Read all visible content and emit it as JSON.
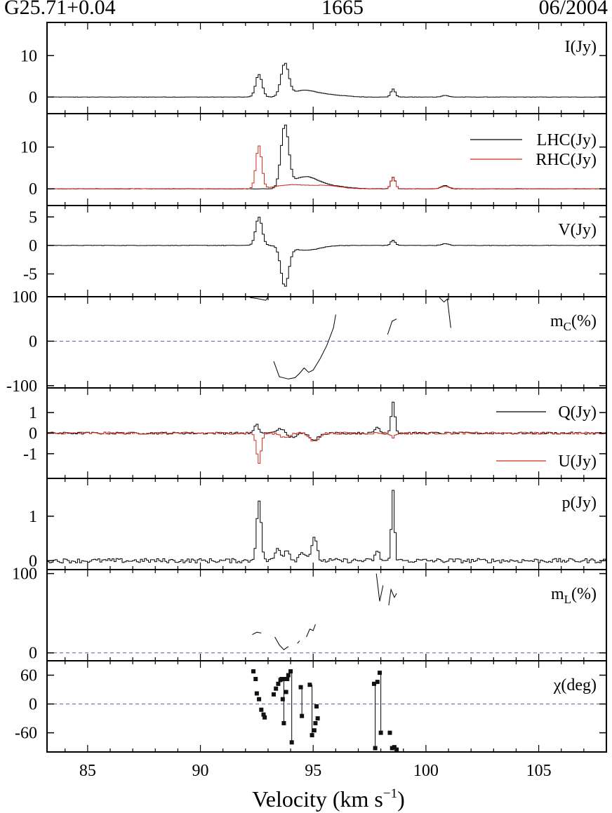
{
  "header": {
    "source": "G25.71+0.04",
    "frequency": "1665",
    "date": "06/2004"
  },
  "colors": {
    "primary": "#000000",
    "secondary": "#d02a1e",
    "zero_line": "#5a5ab4"
  },
  "chart_data": [
    {
      "type": "line",
      "step": true,
      "panel": "I",
      "xlim": [
        83.2,
        108.0
      ],
      "ylim": [
        -4,
        18
      ],
      "yticks": [
        0,
        10
      ],
      "labels": [
        "I(Jy)"
      ],
      "series": [
        {
          "name": "I(Jy)",
          "color": "#000000",
          "peaks": [
            [
              92.55,
              5.5,
              0.14
            ],
            [
              93.7,
              7.8,
              0.17
            ],
            [
              94.4,
              1.1,
              0.45
            ],
            [
              95.0,
              0.8,
              0.6
            ],
            [
              96.0,
              0.3,
              0.6
            ],
            [
              98.5,
              1.9,
              0.1
            ],
            [
              100.8,
              0.4,
              0.15
            ]
          ]
        }
      ]
    },
    {
      "type": "line",
      "step": true,
      "panel": "LHC_RHC",
      "xlim": [
        83.2,
        108.0
      ],
      "ylim": [
        -4,
        18
      ],
      "yticks": [
        0,
        10
      ],
      "labels": [
        "LHC(Jy)",
        "RHC(Jy)"
      ],
      "series": [
        {
          "name": "LHC(Jy)",
          "color": "#000000",
          "peaks": [
            [
              93.7,
              14.8,
              0.17
            ],
            [
              94.4,
              2.0,
              0.45
            ],
            [
              95.0,
              1.5,
              0.5
            ],
            [
              96.0,
              0.5,
              0.6
            ],
            [
              98.5,
              2.8,
              0.1
            ],
            [
              100.8,
              0.8,
              0.15
            ]
          ]
        },
        {
          "name": "RHC(Jy)",
          "color": "#d02a1e",
          "peaks": [
            [
              92.55,
              10.2,
              0.13
            ],
            [
              93.9,
              0.9,
              0.6
            ],
            [
              95.4,
              0.8,
              0.7
            ],
            [
              98.5,
              2.8,
              0.1
            ],
            [
              100.8,
              0.6,
              0.2
            ]
          ]
        }
      ]
    },
    {
      "type": "line",
      "step": true,
      "panel": "V",
      "xlim": [
        83.2,
        108.0
      ],
      "ylim": [
        -9,
        7
      ],
      "yticks": [
        5,
        0,
        -5
      ],
      "labels": [
        "V(Jy)"
      ],
      "series": [
        {
          "name": "V(Jy)",
          "color": "#000000",
          "peaks": [
            [
              92.55,
              5.0,
              0.14
            ],
            [
              93.7,
              -7.0,
              0.17
            ],
            [
              94.4,
              -0.6,
              0.5
            ],
            [
              95.0,
              -0.4,
              0.5
            ],
            [
              98.5,
              0.9,
              0.1
            ],
            [
              100.8,
              0.3,
              0.15
            ]
          ]
        }
      ]
    },
    {
      "type": "line",
      "step": false,
      "panel": "mc",
      "xlim": [
        83.2,
        108.0
      ],
      "ylim": [
        -105,
        100
      ],
      "yticks": [
        100,
        0,
        -100
      ],
      "labels": [
        "m",
        "C",
        "(%)"
      ],
      "zero_line": true,
      "segments": [
        [
          [
            92.2,
            98
          ],
          [
            92.5,
            96
          ],
          [
            92.9,
            92
          ],
          [
            93.0,
            99
          ]
        ],
        [
          [
            93.25,
            -45
          ],
          [
            93.5,
            -80
          ],
          [
            93.9,
            -85
          ],
          [
            94.2,
            -82
          ],
          [
            94.4,
            -72
          ],
          [
            94.6,
            -60
          ],
          [
            94.8,
            -70
          ],
          [
            95.0,
            -65
          ],
          [
            95.3,
            -40
          ],
          [
            95.6,
            -10
          ],
          [
            95.9,
            30
          ],
          [
            96.0,
            60
          ]
        ],
        [
          [
            98.3,
            15
          ],
          [
            98.5,
            45
          ],
          [
            98.7,
            50
          ]
        ],
        [
          [
            100.6,
            98
          ],
          [
            100.8,
            88
          ],
          [
            100.95,
            95
          ],
          [
            101.1,
            30
          ]
        ]
      ]
    },
    {
      "type": "line",
      "step": true,
      "panel": "Q_U",
      "xlim": [
        83.2,
        108.0
      ],
      "ylim": [
        -2.2,
        2.2
      ],
      "yticks": [
        1,
        0,
        -1
      ],
      "labels": [
        "Q(Jy)",
        "U(Jy)"
      ],
      "series": [
        {
          "name": "Q(Jy)",
          "color": "#000000",
          "peaks": [
            [
              92.45,
              0.4,
              0.1
            ],
            [
              93.5,
              0.25,
              0.15
            ],
            [
              94.0,
              -0.2,
              0.2
            ],
            [
              95.0,
              -0.3,
              0.2
            ],
            [
              97.8,
              0.3,
              0.1
            ],
            [
              98.5,
              1.55,
              0.08
            ]
          ]
        },
        {
          "name": "U(Jy)",
          "color": "#d02a1e",
          "peaks": [
            [
              92.55,
              -1.45,
              0.1
            ],
            [
              93.7,
              -0.2,
              0.2
            ],
            [
              95.0,
              -0.4,
              0.2
            ],
            [
              98.5,
              -0.2,
              0.1
            ]
          ]
        }
      ]
    },
    {
      "type": "line",
      "step": true,
      "panel": "p",
      "xlim": [
        83.2,
        108.0
      ],
      "ylim": [
        -0.2,
        1.85
      ],
      "yticks": [
        1,
        0
      ],
      "labels": [
        "p(Jy)"
      ],
      "series": [
        {
          "name": "p(Jy)",
          "color": "#000000",
          "peaks": [
            [
              92.55,
              1.35,
              0.1
            ],
            [
              93.4,
              0.28,
              0.12
            ],
            [
              93.8,
              0.25,
              0.12
            ],
            [
              94.5,
              0.2,
              0.15
            ],
            [
              95.0,
              0.5,
              0.12
            ],
            [
              97.8,
              0.2,
              0.1
            ],
            [
              98.5,
              1.55,
              0.07
            ]
          ]
        }
      ]
    },
    {
      "type": "line",
      "step": false,
      "panel": "mL",
      "xlim": [
        83.2,
        108.0
      ],
      "ylim": [
        -10,
        105
      ],
      "yticks": [
        100,
        0
      ],
      "labels": [
        "m",
        "L",
        "(%)"
      ],
      "zero_line": true,
      "segments": [
        [
          [
            92.3,
            23
          ],
          [
            92.5,
            26
          ],
          [
            92.7,
            25
          ]
        ],
        [
          [
            93.3,
            20
          ],
          [
            93.5,
            10
          ],
          [
            93.7,
            4
          ],
          [
            93.9,
            8
          ]
        ],
        [
          [
            94.3,
            12
          ],
          [
            94.4,
            15
          ]
        ],
        [
          [
            94.7,
            20
          ],
          [
            94.85,
            30
          ],
          [
            95.0,
            28
          ],
          [
            95.1,
            36
          ]
        ],
        [
          [
            97.8,
            100
          ],
          [
            97.95,
            65
          ],
          [
            98.1,
            85
          ]
        ],
        [
          [
            98.35,
            60
          ],
          [
            98.45,
            80
          ],
          [
            98.6,
            70
          ],
          [
            98.7,
            75
          ]
        ]
      ]
    },
    {
      "type": "scatter",
      "panel": "chi",
      "xlim": [
        83.2,
        108.0
      ],
      "ylim": [
        -100,
        90
      ],
      "yticks": [
        60,
        0,
        -60
      ],
      "labels": [
        "χ(deg)"
      ],
      "zero_line": true,
      "points": [
        [
          92.35,
          68
        ],
        [
          92.45,
          52
        ],
        [
          92.5,
          22
        ],
        [
          92.6,
          10
        ],
        [
          92.7,
          -12
        ],
        [
          92.8,
          -22
        ],
        [
          92.85,
          -28
        ],
        [
          93.25,
          20
        ],
        [
          93.35,
          32
        ],
        [
          93.45,
          42
        ],
        [
          93.55,
          50
        ],
        [
          93.6,
          52
        ],
        [
          93.65,
          10
        ],
        [
          93.7,
          -40
        ],
        [
          93.75,
          52
        ],
        [
          93.8,
          25
        ],
        [
          93.85,
          52
        ],
        [
          93.9,
          60
        ],
        [
          94.0,
          68
        ],
        [
          94.05,
          -80
        ],
        [
          94.45,
          35
        ],
        [
          94.5,
          -25
        ],
        [
          94.85,
          40
        ],
        [
          94.95,
          -65
        ],
        [
          95.05,
          -55
        ],
        [
          95.1,
          -40
        ],
        [
          95.15,
          -5
        ],
        [
          95.2,
          -30
        ],
        [
          97.7,
          42
        ],
        [
          97.75,
          -92
        ],
        [
          97.85,
          46
        ],
        [
          97.95,
          65
        ],
        [
          98.0,
          -60
        ],
        [
          98.4,
          -60
        ],
        [
          98.5,
          -92
        ],
        [
          98.6,
          -90
        ],
        [
          98.7,
          -95
        ]
      ],
      "vlines": [
        [
          93.7,
          -40,
          52
        ],
        [
          94.05,
          -80,
          68
        ],
        [
          94.5,
          -25,
          35
        ],
        [
          94.95,
          -65,
          40
        ],
        [
          97.75,
          -92,
          42
        ],
        [
          98.0,
          -60,
          65
        ]
      ]
    }
  ],
  "x_axis": {
    "ticks": [
      85,
      90,
      95,
      100,
      105
    ],
    "label": "Velocity (km s",
    "label_sup": "−1",
    "label_end": ")"
  }
}
